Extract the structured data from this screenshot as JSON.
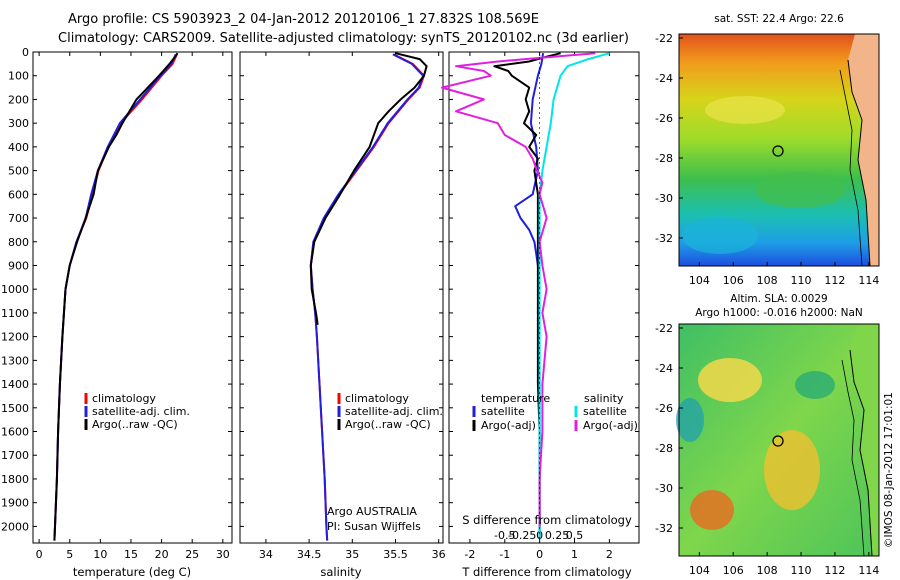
{
  "header": {
    "line1": "Argo profile: CS 5903923_2 04-Jan-2012 20120106_1 27.832S 108.569E",
    "line2": "Climatology: CARS2009. Satellite-adjusted climatology: synTS_20120102.nc (3d earlier)"
  },
  "colors": {
    "climatology": "#ff0000",
    "satellite": "#1f1fdd",
    "argo": "#000000",
    "sat_salinity": "#00e5e5",
    "argo_salinity": "#e020e0"
  },
  "depth_ticks": [
    0,
    100,
    200,
    300,
    400,
    500,
    600,
    700,
    800,
    900,
    1000,
    1100,
    1200,
    1300,
    1400,
    1500,
    1600,
    1700,
    1800,
    1900,
    2000
  ],
  "chart_data": [
    {
      "type": "line",
      "xlabel": "temperature (deg C)",
      "xlim": [
        -1,
        31.5
      ],
      "ylim": [
        2070,
        0
      ],
      "xticks": [
        0,
        5,
        10,
        15,
        20,
        25,
        30
      ],
      "legend": [
        "climatology",
        "satellite-adj. clim.",
        "Argo(..raw -QC)"
      ],
      "series": [
        {
          "name": "climatology",
          "depth": [
            10,
            50,
            100,
            200,
            300,
            400,
            500,
            600,
            700,
            800,
            900,
            1000,
            1200,
            1400,
            1600,
            1800,
            2000,
            2060
          ],
          "x": [
            22.5,
            21.8,
            20,
            16.8,
            13.3,
            11.3,
            9.7,
            8.7,
            7.7,
            6.1,
            5,
            4.3,
            3.8,
            3.4,
            3.1,
            2.9,
            2.6,
            2.5
          ]
        },
        {
          "name": "satellite-adj. clim.",
          "depth": [
            10,
            50,
            100,
            200,
            300,
            400,
            500,
            600,
            700,
            800,
            900,
            1000,
            1200,
            1400,
            1600,
            1800,
            2000,
            2060
          ],
          "x": [
            22.3,
            21.6,
            19.8,
            16.5,
            13.2,
            11.2,
            9.6,
            8.5,
            7.6,
            6.1,
            5,
            4.3,
            3.8,
            3.4,
            3.1,
            2.9,
            2.6,
            2.5
          ]
        },
        {
          "name": "Argo(..raw -QC)",
          "depth": [
            5,
            20,
            50,
            100,
            200,
            300,
            350,
            400,
            500,
            600,
            700,
            800,
            900,
            1000,
            1200,
            1400,
            1600,
            1800,
            2000,
            2060
          ],
          "x": [
            22.6,
            22.2,
            21.3,
            19.6,
            15.9,
            13.6,
            12.6,
            11.4,
            9.6,
            8.9,
            7.6,
            6.2,
            5,
            4.3,
            3.8,
            3.4,
            3.1,
            2.9,
            2.6,
            2.5
          ]
        }
      ]
    },
    {
      "type": "line",
      "xlabel": "salinity",
      "xlim": [
        33.7,
        36.05
      ],
      "ylim": [
        2070,
        0
      ],
      "xticks": [
        34,
        34.5,
        35,
        35.5,
        36
      ],
      "xtick_labels": [
        "34",
        "34.5",
        "35",
        "35.5",
        "36"
      ],
      "legend": [
        "climatology",
        "satellite-adj. clim.",
        "Argo(..raw -QC)"
      ],
      "annotation": [
        "Argo AUSTRALIA",
        "PI: Susan Wijffels"
      ],
      "series": [
        {
          "name": "climatology",
          "depth": [
            10,
            50,
            100,
            150,
            200,
            300,
            400,
            500,
            600,
            700,
            800,
            900,
            1000,
            1100,
            1200,
            1400,
            1600,
            1800,
            2000,
            2060
          ],
          "x": [
            35.48,
            35.7,
            35.83,
            35.78,
            35.65,
            35.42,
            35.25,
            35.05,
            34.85,
            34.68,
            34.55,
            34.52,
            34.54,
            34.57,
            34.59,
            34.62,
            34.65,
            34.68,
            34.7,
            34.71
          ]
        },
        {
          "name": "satellite-adj. clim.",
          "depth": [
            10,
            50,
            100,
            150,
            200,
            300,
            400,
            500,
            600,
            700,
            800,
            900,
            1000,
            1100,
            1200,
            1400,
            1600,
            1800,
            2000,
            2060
          ],
          "x": [
            35.47,
            35.69,
            35.82,
            35.77,
            35.64,
            35.41,
            35.24,
            35.04,
            34.84,
            34.67,
            34.55,
            34.52,
            34.54,
            34.57,
            34.59,
            34.62,
            34.65,
            34.68,
            34.7,
            34.71
          ]
        },
        {
          "name": "Argo(..raw -QC)",
          "depth": [
            5,
            30,
            60,
            100,
            150,
            200,
            250,
            300,
            400,
            500,
            600,
            700,
            800,
            900,
            1000,
            1100,
            1150
          ],
          "x": [
            35.5,
            35.78,
            35.86,
            35.83,
            35.72,
            35.56,
            35.42,
            35.3,
            35.2,
            35.02,
            34.86,
            34.69,
            34.56,
            34.52,
            34.53,
            34.58,
            34.6
          ]
        }
      ]
    },
    {
      "type": "line",
      "xlabel": "T difference from climatology",
      "xlabel_top": "S difference from climatology",
      "xlim": [
        -2.6,
        2.85
      ],
      "ylim": [
        2070,
        0
      ],
      "xticks": [
        -2,
        -1,
        0,
        1,
        2
      ],
      "xticks_top": [
        -0.5,
        -0.25,
        0,
        0.25,
        0.5
      ],
      "legend_temperature": [
        "satellite",
        "Argo(-adj)"
      ],
      "legend_salinity": [
        "satellite",
        "Argo(-adj)"
      ],
      "legend_heading_temperature": "temperature",
      "legend_heading_salinity": "salinity",
      "series": [
        {
          "name": "temperature satellite",
          "depth": [
            5,
            50,
            100,
            200,
            300,
            400,
            500,
            600,
            650,
            700,
            750,
            800,
            850,
            900,
            1000,
            1200,
            1400,
            1600,
            1800,
            2000,
            2050
          ],
          "x": [
            0.1,
            0.05,
            -0.05,
            -0.2,
            -0.25,
            -0.1,
            -0.05,
            -0.2,
            -0.7,
            -0.55,
            -0.3,
            -0.15,
            -0.1,
            -0.05,
            -0.02,
            -0.01,
            0,
            0,
            0,
            0,
            0
          ]
        },
        {
          "name": "temperature Argo(-adj)",
          "depth": [
            5,
            20,
            40,
            60,
            80,
            100,
            150,
            200,
            250,
            300,
            350,
            400,
            450,
            500,
            600,
            800,
            1000,
            1200,
            1400,
            1600,
            1800,
            2000,
            2050
          ],
          "x": [
            0.6,
            0.2,
            -0.3,
            -1.3,
            -0.9,
            -0.8,
            -0.3,
            -0.4,
            -0.3,
            -0.45,
            -0.1,
            -0.3,
            -0.05,
            -0.15,
            -0.05,
            -0.05,
            -0.05,
            -0.05,
            -0.05,
            0,
            0,
            0,
            0
          ]
        },
        {
          "name": "salinity satellite",
          "depth": [
            5,
            30,
            60,
            100,
            200,
            300,
            400,
            500,
            600,
            800,
            1000,
            1200,
            1400,
            1600,
            1800,
            2000,
            2050
          ],
          "x": [
            0.5,
            0.35,
            0.2,
            0.15,
            0.1,
            0.08,
            0.05,
            0.02,
            0,
            0,
            0,
            0,
            0,
            0,
            0,
            0,
            0
          ]
        },
        {
          "name": "salinity Argo(-adj)",
          "depth": [
            5,
            25,
            40,
            60,
            80,
            100,
            150,
            200,
            250,
            300,
            350,
            400,
            450,
            500,
            550,
            600,
            700,
            800,
            900,
            1000,
            1100,
            1200,
            1400,
            1600,
            1800,
            2000
          ],
          "x": [
            0.4,
            0,
            -0.3,
            -0.6,
            -0.4,
            -0.35,
            -0.7,
            -0.4,
            -0.6,
            -0.3,
            -0.25,
            -0.1,
            -0.05,
            -0.02,
            0.02,
            0,
            0.05,
            0,
            0.02,
            0.05,
            0.02,
            0.05,
            0.02,
            0.02,
            0,
            0
          ]
        }
      ]
    }
  ],
  "map_top": {
    "title": "sat. SST: 22.4  Argo: 22.6",
    "xticks": [
      "104",
      "106",
      "108",
      "110",
      "112",
      "114"
    ],
    "yticks": [
      "-22",
      "-24",
      "-26",
      "-28",
      "-30",
      "-32"
    ]
  },
  "map_bottom": {
    "title_line1": "Altim. SLA: 0.0029",
    "title_line2": "Argo h1000: -0.016 h2000: NaN",
    "xticks": [
      "104",
      "106",
      "108",
      "110",
      "112",
      "114"
    ],
    "yticks": [
      "-22",
      "-24",
      "-26",
      "-28",
      "-30",
      "-32"
    ]
  },
  "credit": "©IMOS 08-Jan-2012 17:01:01"
}
